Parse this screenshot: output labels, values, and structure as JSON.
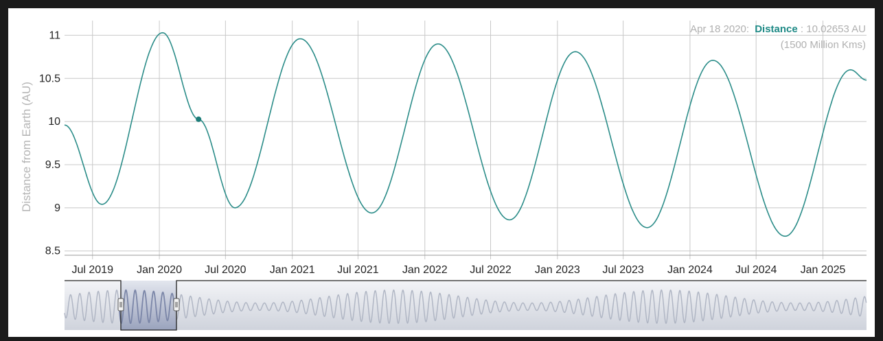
{
  "chart_data": {
    "type": "line",
    "ylabel": "Distance from Earth (AU)",
    "yticks": [
      "8.5",
      "9",
      "9.5",
      "10",
      "10.5",
      "11"
    ],
    "xticks": [
      "Jul 2019",
      "Jan 2020",
      "Jul 2020",
      "Jan 2021",
      "Jul 2021",
      "Jan 2022",
      "Jul 2022",
      "Jan 2023",
      "Jul 2023",
      "Jan 2024",
      "Jul 2024",
      "Jan 2025"
    ],
    "ylim": [
      8.45,
      11.25
    ],
    "grid": true,
    "series": [
      {
        "color": "#2a8c88",
        "points": [
          [
            "2019-04-15",
            9.96
          ],
          [
            "2019-07-27",
            9.04
          ],
          [
            "2020-01-10",
            11.03
          ],
          [
            "2020-04-18",
            10.02653
          ],
          [
            "2020-07-27",
            9.0
          ],
          [
            "2021-01-23",
            10.96
          ],
          [
            "2021-08-08",
            8.94
          ],
          [
            "2022-02-06",
            10.9
          ],
          [
            "2022-08-22",
            8.86
          ],
          [
            "2023-02-19",
            10.81
          ],
          [
            "2023-09-05",
            8.77
          ],
          [
            "2024-03-04",
            10.71
          ],
          [
            "2024-09-19",
            8.67
          ],
          [
            "2025-03-18",
            10.6
          ],
          [
            "2025-05-01",
            10.48
          ]
        ]
      }
    ],
    "highlight": {
      "date": "2020-04-18",
      "value": 10.02653
    },
    "tooltip": {
      "date": "Apr 18 2020:",
      "label": "Distance",
      "value": ": 10.02653 AU",
      "sub": "(1500 Million Kms)"
    },
    "navigator": {
      "selected_range": [
        "2019-04-15",
        "2025-05-01"
      ]
    }
  }
}
